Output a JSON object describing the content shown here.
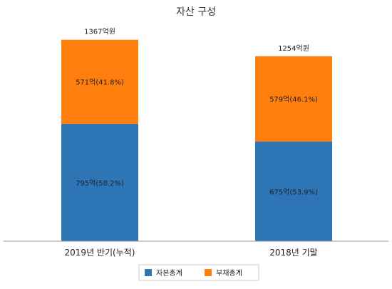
{
  "chart_data": {
    "type": "bar",
    "stacked": true,
    "title": "자산 구성",
    "categories": [
      "2019년 반기(누적)",
      "2018년 기말"
    ],
    "totals": [
      1367,
      1254
    ],
    "total_labels": [
      "1367억원",
      "1254억원"
    ],
    "series": [
      {
        "name": "자본총계",
        "color": "#2E75B6",
        "values": [
          795,
          675
        ],
        "labels": [
          "795억(58.2%)",
          "675억(53.9%)"
        ]
      },
      {
        "name": "부채총계",
        "color": "#FF7F0E",
        "values": [
          571,
          579
        ],
        "labels": [
          "571억(41.8%)",
          "579억(46.1%)"
        ]
      }
    ],
    "ylim": [
      0,
      1500
    ],
    "grid": false,
    "legend_position": "bottom"
  }
}
